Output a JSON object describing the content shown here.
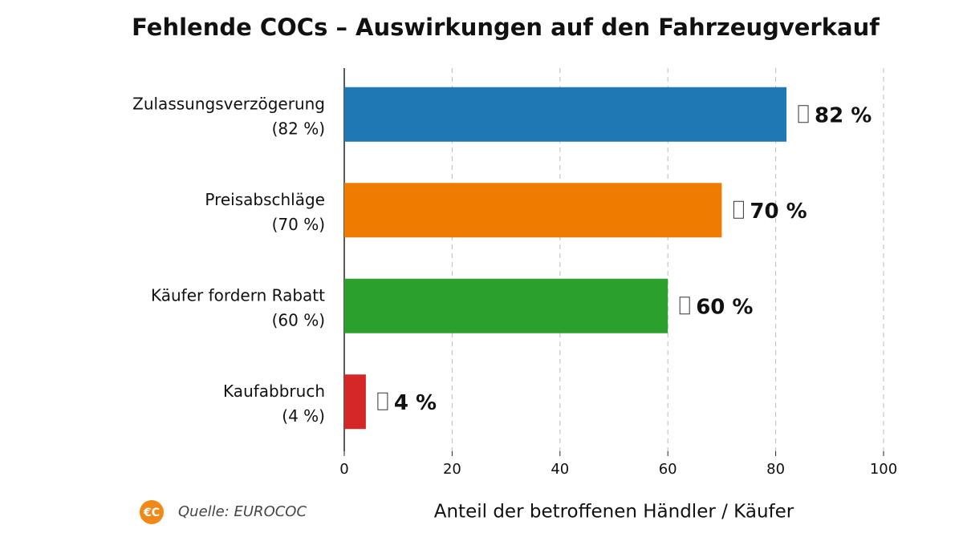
{
  "chart_data": {
    "type": "barh",
    "title": "Fehlende COCs – Auswirkungen auf den Fahrzeugverkauf",
    "categories": [
      "Zulassungsverzögerung",
      "Preisabschläge",
      "Käufer fordern Rabatt",
      "Kaufabbruch"
    ],
    "category_sublabels": [
      "(82 %)",
      "(70 %)",
      "(60 %)",
      "(4 %)"
    ],
    "values": [
      82,
      70,
      60,
      4
    ],
    "value_labels": [
      "82 %",
      "70 %",
      "60 %",
      "4 %"
    ],
    "colors": [
      "#1f77b4",
      "#ef7b00",
      "#2ca02c",
      "#d62728"
    ],
    "xlim": [
      0,
      100
    ],
    "xticks": [
      0,
      20,
      40,
      60,
      80,
      100
    ],
    "grid": true,
    "xlabel": "Anteil der betroffenen Händler / Käufer",
    "source_logo": "€C",
    "source": "Quelle: EUROCOC"
  }
}
